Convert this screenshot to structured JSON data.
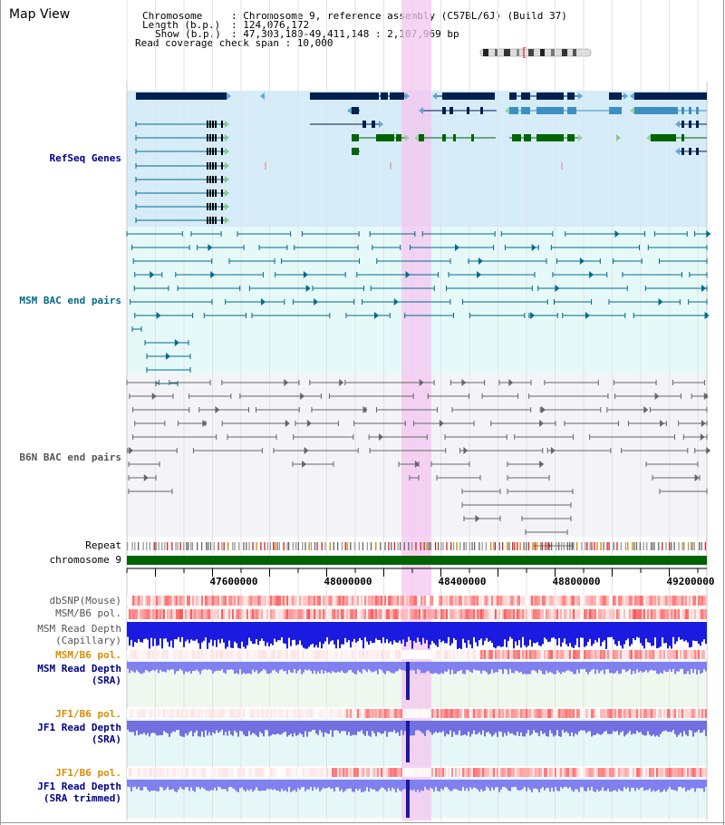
{
  "title": "Map View",
  "info": {
    "chromosome_key": "Chromosome",
    "chromosome_val": ": Chromosome 9, reference assembly (C57BL/6J) (Build 37)",
    "length_key": "Length (b.p.)",
    "length_val": ": 124,076,172",
    "show_key": "Show (b.p.)",
    "show_val": ": 47,303,180-49,411,148 : 2,107,969 bp",
    "coverage": "Read coverage check span : 10,000"
  },
  "tracks": {
    "refseq": "RefSeq Genes",
    "msm_bac": "MSM BAC end pairs",
    "b6n_bac": "B6N BAC end pairs",
    "repeat": "Repeat",
    "chromosome": "chromosome 9",
    "dbsnp": "dbSNP(Mouse)",
    "msm_pol": "MSM/B6 pol.",
    "msm_depth_cap_1": "MSM Read Depth",
    "msm_depth_cap_2": "(Capillary)",
    "msm_pol_sra": "MSM/B6 pol.",
    "msm_depth_sra_1": "MSM Read Depth",
    "msm_depth_sra_2": "(SRA)",
    "jf1_pol": "JF1/B6 pol.",
    "jf1_depth_1": "JF1 Read Depth",
    "jf1_depth_2": "(SRA)",
    "jf1_pol_trim": "JF1/B6 pol.",
    "jf1_trim_1": "JF1 Read Depth",
    "jf1_trim_2": "(SRA trimmed)"
  },
  "axis_ticks": [
    "47600000",
    "48000000",
    "48400000",
    "48800000",
    "49200000"
  ],
  "colors": {
    "refseq_label": "#00008b",
    "msm_label": "#006a8a",
    "b6n_label": "#555555",
    "pol_label": "#d98c00",
    "depth_label": "#00008b",
    "gene_dark": "#00204f",
    "gene_mid": "#3d8fbf",
    "gene_green": "#006400",
    "highlight": "#f4c6f0"
  }
}
